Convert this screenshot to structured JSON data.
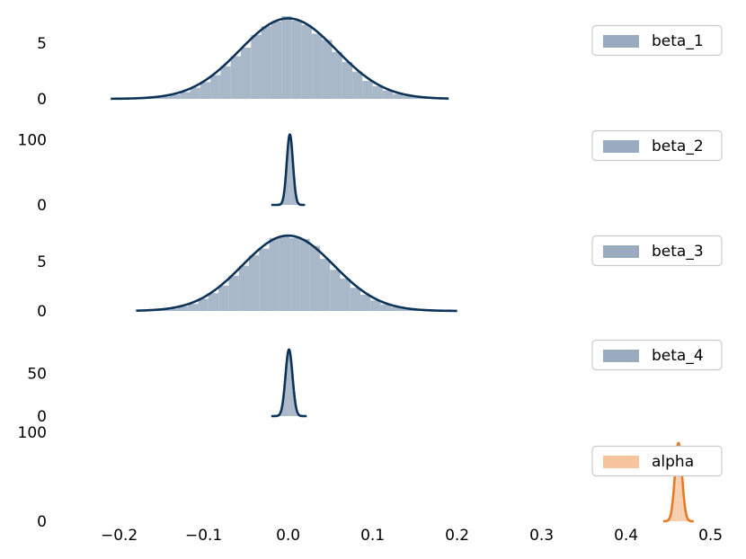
{
  "chart_data": {
    "type": "histogram-kde-stacked",
    "xticks": [
      -0.2,
      -0.1,
      0.0,
      0.1,
      0.2,
      0.3,
      0.4,
      0.5
    ],
    "xtick_labels": [
      "−0.2",
      "−0.1",
      "0.0",
      "0.1",
      "0.2",
      "0.3",
      "0.4",
      "0.5"
    ],
    "xlim": [
      -0.24,
      0.51
    ],
    "grid": false,
    "legend_position": "right",
    "panels": [
      {
        "label": "beta_1",
        "color": "#9aabbf",
        "line_color": "#0d3358",
        "mean": 0.0,
        "std": 0.055,
        "peak": 7.2,
        "x_range": [
          -0.21,
          0.19
        ],
        "bin_width": 0.012,
        "ylim": [
          0,
          8.2
        ],
        "yticks": [
          0,
          5
        ]
      },
      {
        "label": "beta_2",
        "color": "#9aabbf",
        "line_color": "#0d3358",
        "mean": 0.002,
        "std": 0.0035,
        "peak": 108,
        "x_range": [
          -0.02,
          0.02
        ],
        "bin_width": 0.002,
        "ylim": [
          0,
          135
        ],
        "yticks": [
          0,
          100
        ]
      },
      {
        "label": "beta_3",
        "color": "#9aabbf",
        "line_color": "#0d3358",
        "mean": 0.0,
        "std": 0.052,
        "peak": 7.6,
        "x_range": [
          -0.18,
          0.2
        ],
        "bin_width": 0.012,
        "ylim": [
          0,
          8.7
        ],
        "yticks": [
          0,
          5
        ]
      },
      {
        "label": "beta_4",
        "color": "#9aabbf",
        "line_color": "#0d3358",
        "mean": 0.001,
        "std": 0.004,
        "peak": 78,
        "x_range": [
          -0.02,
          0.022
        ],
        "bin_width": 0.002,
        "ylim": [
          0,
          100
        ],
        "yticks": [
          0,
          50
        ]
      },
      {
        "label": "alpha",
        "color": "#f6c59f",
        "line_color": "#e87a24",
        "mean": 0.462,
        "std": 0.004,
        "peak": 88,
        "x_range": [
          0.444,
          0.48
        ],
        "bin_width": 0.002,
        "ylim": [
          0,
          101
        ],
        "yticks": [
          0,
          100
        ]
      }
    ]
  }
}
